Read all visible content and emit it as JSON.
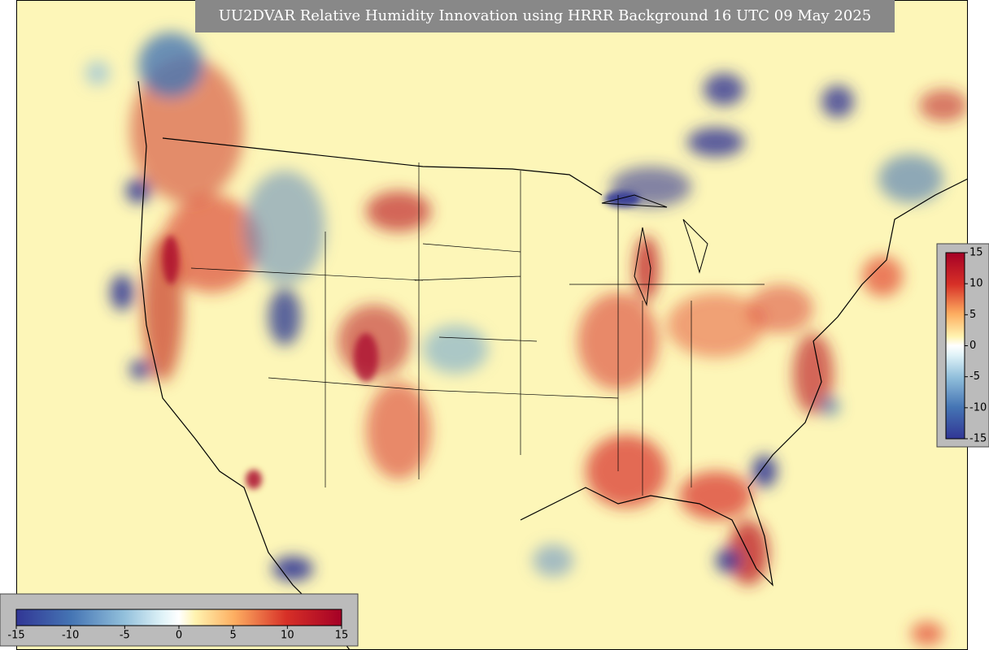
{
  "title": "UU2DVAR Relative Humidity Innovation using HRRR Background 16 UTC 09 May 2025",
  "colorbar_vertical": {
    "ticks": [
      15,
      10,
      5,
      0,
      -5,
      -10,
      -15
    ]
  },
  "colorbar_horizontal": {
    "ticks": [
      -15,
      -10,
      -5,
      0,
      5,
      10,
      15
    ]
  }
}
